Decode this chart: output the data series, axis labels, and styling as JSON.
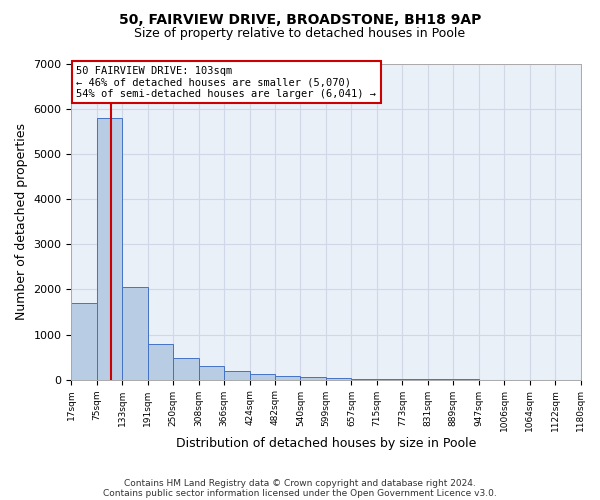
{
  "title1": "50, FAIRVIEW DRIVE, BROADSTONE, BH18 9AP",
  "title2": "Size of property relative to detached houses in Poole",
  "xlabel": "Distribution of detached houses by size in Poole",
  "ylabel": "Number of detached properties",
  "bin_labels": [
    "17sqm",
    "75sqm",
    "133sqm",
    "191sqm",
    "250sqm",
    "308sqm",
    "366sqm",
    "424sqm",
    "482sqm",
    "540sqm",
    "599sqm",
    "657sqm",
    "715sqm",
    "773sqm",
    "831sqm",
    "889sqm",
    "947sqm",
    "1006sqm",
    "1064sqm",
    "1122sqm",
    "1180sqm"
  ],
  "bar_values": [
    1700,
    5800,
    2050,
    800,
    490,
    295,
    195,
    120,
    75,
    48,
    30,
    15,
    10,
    6,
    4,
    3,
    2,
    1,
    1,
    1
  ],
  "bar_color": "#b8cce4",
  "bar_edge_color": "#4472c4",
  "property_line_bin": 1,
  "annotation_text": "50 FAIRVIEW DRIVE: 103sqm\n← 46% of detached houses are smaller (5,070)\n54% of semi-detached houses are larger (6,041) →",
  "annotation_box_color": "#ffffff",
  "annotation_box_edge": "#cc0000",
  "ylim": [
    0,
    7000
  ],
  "yticks": [
    0,
    1000,
    2000,
    3000,
    4000,
    5000,
    6000,
    7000
  ],
  "grid_color": "#d0d8e8",
  "footer1": "Contains HM Land Registry data © Crown copyright and database right 2024.",
  "footer2": "Contains public sector information licensed under the Open Government Licence v3.0.",
  "fig_bg": "#ffffff",
  "ax_bg": "#eaf0f8",
  "red_line_color": "#cc0000",
  "title1_fontsize": 10,
  "title2_fontsize": 9,
  "ylabel_fontsize": 9,
  "xlabel_fontsize": 9,
  "footer_fontsize": 6.5,
  "annot_fontsize": 7.5
}
